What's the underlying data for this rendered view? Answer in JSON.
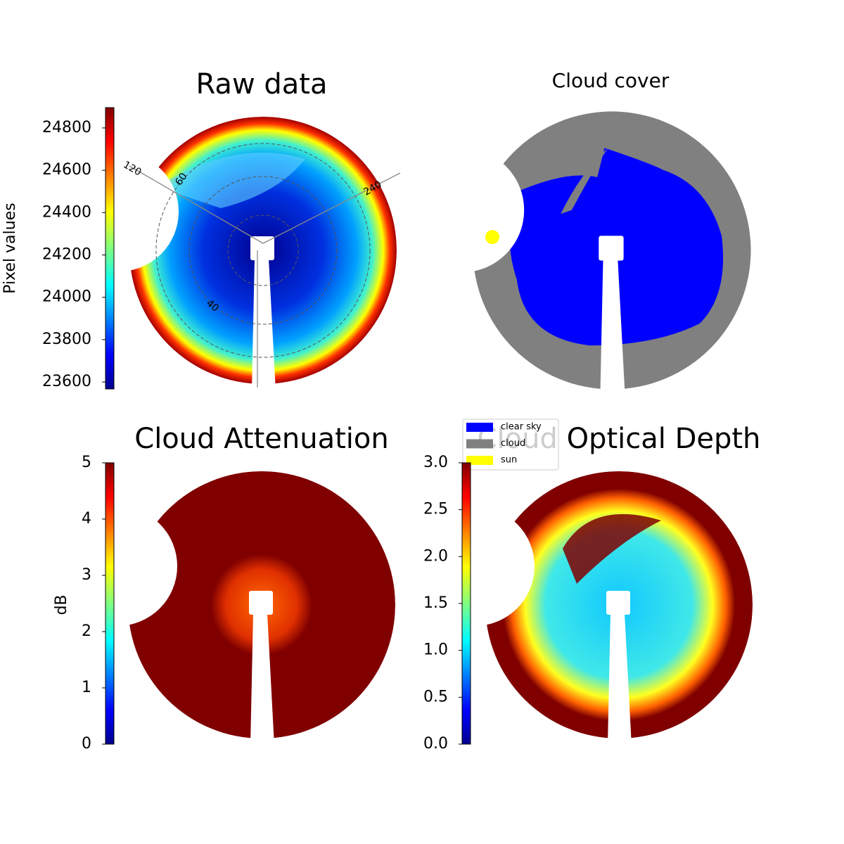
{
  "chart_data": [
    {
      "type": "image",
      "title": "Raw data",
      "colorbar": {
        "label": "Pixel values",
        "cmap": "jet",
        "lim": [
          23567,
          24896
        ],
        "ticks": [
          23600,
          23800,
          24000,
          24200,
          24400,
          24600,
          24800
        ]
      },
      "annotations": [
        "120",
        "60",
        "240",
        "40"
      ]
    },
    {
      "type": "image",
      "title": "Cloud cover",
      "legend": [
        {
          "name": "clear sky",
          "color": "#0000ff"
        },
        {
          "name": "cloud",
          "color": "#808080"
        },
        {
          "name": "sun",
          "color": "#ffff00"
        }
      ]
    },
    {
      "type": "image",
      "title": "Cloud Attenuation",
      "colorbar": {
        "label": "dB",
        "cmap": "jet",
        "lim": [
          0,
          5
        ],
        "ticks": [
          0,
          1,
          2,
          3,
          4,
          5
        ]
      }
    },
    {
      "type": "image",
      "title": "Cloud Optical Depth",
      "colorbar": {
        "cmap": "jet",
        "lim": [
          0,
          3
        ],
        "ticks": [
          {
            "value": 0,
            "label": "0.0"
          },
          {
            "value": 0.5,
            "label": "0.5"
          },
          {
            "value": 1,
            "label": "1.0"
          },
          {
            "value": 1.5,
            "label": "1.5"
          },
          {
            "value": 2,
            "label": "2.0"
          },
          {
            "value": 2.5,
            "label": "2.5"
          },
          {
            "value": 3,
            "label": "3.0"
          }
        ]
      }
    }
  ]
}
